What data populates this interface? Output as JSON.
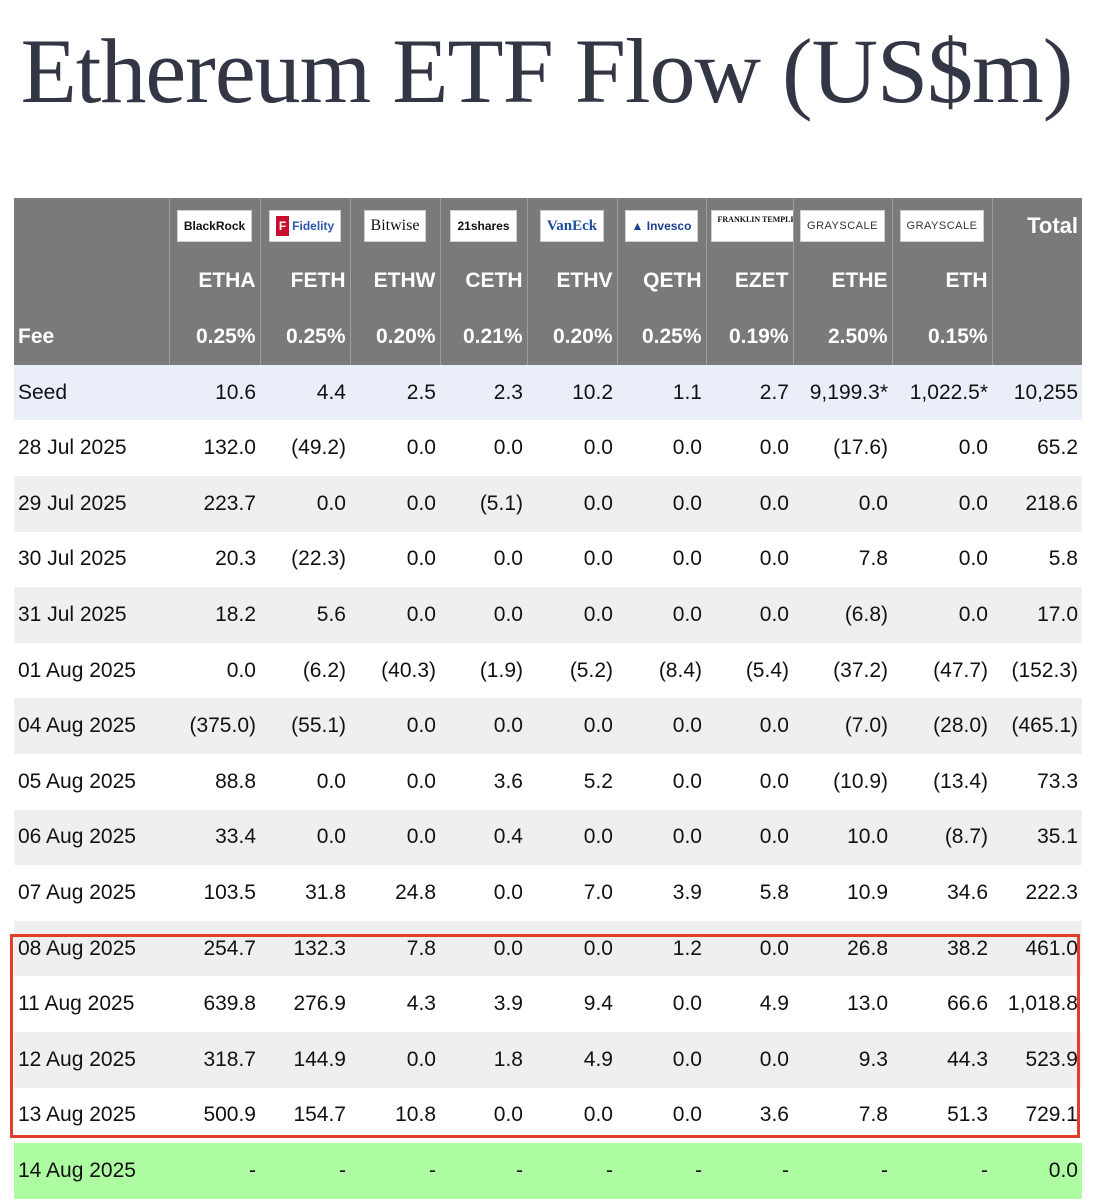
{
  "title": "Ethereum ETF Flow (US$m)",
  "issuers": [
    "BlackRock",
    "Fidelity",
    "Bitwise",
    "21shares",
    "VanEck",
    "Invesco",
    "FRANKLIN TEMPLETON",
    "GRAYSCALE",
    "GRAYSCALE"
  ],
  "total_label": "Total",
  "tickers": [
    "ETHA",
    "FETH",
    "ETHW",
    "CETH",
    "ETHV",
    "QETH",
    "EZET",
    "ETHE",
    "ETH"
  ],
  "fee_label": "Fee",
  "fees": [
    "0.25%",
    "0.25%",
    "0.20%",
    "0.21%",
    "0.20%",
    "0.25%",
    "0.19%",
    "2.50%",
    "0.15%"
  ],
  "rows": [
    {
      "label": "Seed",
      "style": "seed",
      "values": [
        "10.6",
        "4.4",
        "2.5",
        "2.3",
        "10.2",
        "1.1",
        "2.7",
        "9,199.3*",
        "1,022.5*",
        "10,255"
      ]
    },
    {
      "label": "28 Jul 2025",
      "style": "white",
      "values": [
        "132.0",
        "(49.2)",
        "0.0",
        "0.0",
        "0.0",
        "0.0",
        "0.0",
        "(17.6)",
        "0.0",
        "65.2"
      ]
    },
    {
      "label": "29 Jul 2025",
      "style": "grey",
      "values": [
        "223.7",
        "0.0",
        "0.0",
        "(5.1)",
        "0.0",
        "0.0",
        "0.0",
        "0.0",
        "0.0",
        "218.6"
      ]
    },
    {
      "label": "30 Jul 2025",
      "style": "white",
      "values": [
        "20.3",
        "(22.3)",
        "0.0",
        "0.0",
        "0.0",
        "0.0",
        "0.0",
        "7.8",
        "0.0",
        "5.8"
      ]
    },
    {
      "label": "31 Jul 2025",
      "style": "grey",
      "values": [
        "18.2",
        "5.6",
        "0.0",
        "0.0",
        "0.0",
        "0.0",
        "0.0",
        "(6.8)",
        "0.0",
        "17.0"
      ]
    },
    {
      "label": "01 Aug 2025",
      "style": "white",
      "values": [
        "0.0",
        "(6.2)",
        "(40.3)",
        "(1.9)",
        "(5.2)",
        "(8.4)",
        "(5.4)",
        "(37.2)",
        "(47.7)",
        "(152.3)"
      ]
    },
    {
      "label": "04 Aug 2025",
      "style": "grey",
      "values": [
        "(375.0)",
        "(55.1)",
        "0.0",
        "0.0",
        "0.0",
        "0.0",
        "0.0",
        "(7.0)",
        "(28.0)",
        "(465.1)"
      ]
    },
    {
      "label": "05 Aug 2025",
      "style": "white",
      "values": [
        "88.8",
        "0.0",
        "0.0",
        "3.6",
        "5.2",
        "0.0",
        "0.0",
        "(10.9)",
        "(13.4)",
        "73.3"
      ]
    },
    {
      "label": "06 Aug 2025",
      "style": "grey",
      "values": [
        "33.4",
        "0.0",
        "0.0",
        "0.4",
        "0.0",
        "0.0",
        "0.0",
        "10.0",
        "(8.7)",
        "35.1"
      ]
    },
    {
      "label": "07 Aug 2025",
      "style": "white",
      "values": [
        "103.5",
        "31.8",
        "24.8",
        "0.0",
        "7.0",
        "3.9",
        "5.8",
        "10.9",
        "34.6",
        "222.3"
      ]
    },
    {
      "label": "08 Aug 2025",
      "style": "grey",
      "values": [
        "254.7",
        "132.3",
        "7.8",
        "0.0",
        "0.0",
        "1.2",
        "0.0",
        "26.8",
        "38.2",
        "461.0"
      ]
    },
    {
      "label": "11 Aug 2025",
      "style": "white",
      "values": [
        "639.8",
        "276.9",
        "4.3",
        "3.9",
        "9.4",
        "0.0",
        "4.9",
        "13.0",
        "66.6",
        "1,018.8"
      ]
    },
    {
      "label": "12 Aug 2025",
      "style": "grey",
      "values": [
        "318.7",
        "144.9",
        "0.0",
        "1.8",
        "4.9",
        "0.0",
        "0.0",
        "9.3",
        "44.3",
        "523.9"
      ]
    },
    {
      "label": "13 Aug 2025",
      "style": "white",
      "values": [
        "500.9",
        "154.7",
        "10.8",
        "0.0",
        "0.0",
        "0.0",
        "3.6",
        "7.8",
        "51.3",
        "729.1"
      ]
    },
    {
      "label": "14 Aug 2025",
      "style": "green",
      "values": [
        "-",
        "-",
        "-",
        "-",
        "-",
        "-",
        "-",
        "-",
        "-",
        "0.0"
      ]
    }
  ],
  "colors": {
    "header_bg": "#7a7a7a",
    "negative": "#e0312b",
    "highlight_border": "#e03d2a",
    "pending_row": "#aefca2",
    "seed_row": "#e9eef8"
  }
}
